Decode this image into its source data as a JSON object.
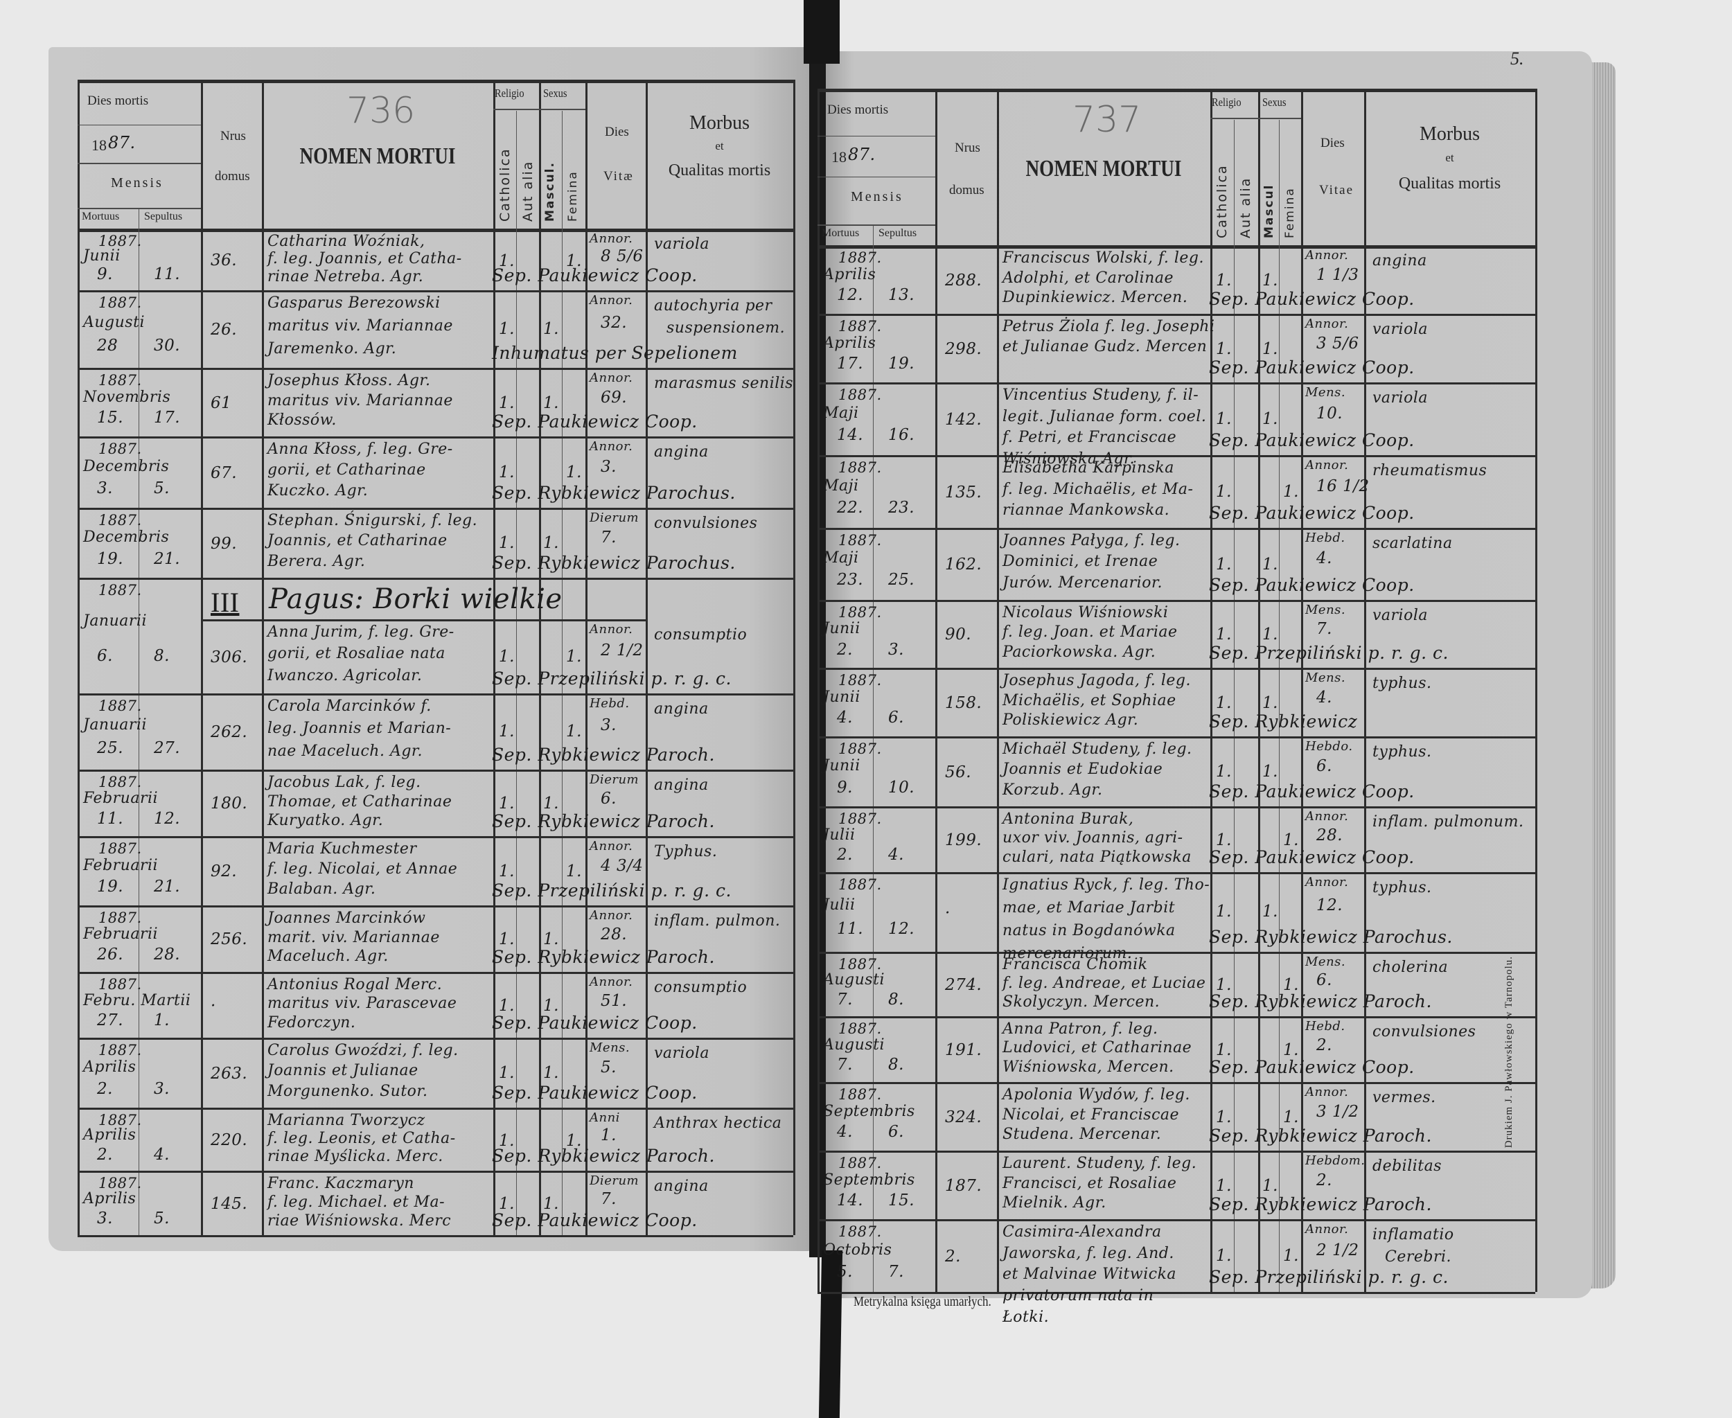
{
  "book_footer": "Metrykalna księga umarłych.",
  "page_number": "5.",
  "printer_imprint": "Drukiem J. Pawłowskiego w Tarnopolu.",
  "colors": {
    "paper": "#c6c6c6",
    "ink": "#1c1c1c",
    "rule": "#2c2c2c",
    "background": "#e9e9e9",
    "ribbon": "#151515"
  },
  "header": {
    "dies_mortis": "Dies mortis",
    "year_printed": "18",
    "year_hand": "87.",
    "mensis": "Mensis",
    "mortuus": "Mortuus",
    "sepultus": "Sepultus",
    "nrus": "Nrus",
    "domus": "domus",
    "nomen_mortui": "NOMEN MORTUI",
    "religio": "Religio",
    "sexus": "Sexus",
    "catholica": "Catholica",
    "aut_alia": "Aut alia",
    "mascul_left": "Mascul.",
    "mascul_right": "Mascul",
    "femina": "Femina",
    "dies": "Dies",
    "vitae_left": "Vitæ",
    "vitae_right": "Vitae",
    "morbus": "Morbus",
    "et": "et",
    "qualitas_mortis": "Qualitas mortis"
  },
  "left_page": {
    "folio_pencil": "736",
    "section": {
      "number": "III",
      "label": "Pagus: Borki wielkie"
    },
    "entries": [
      {
        "year": "1887.",
        "month": "Junii",
        "mortuus": "9.",
        "sepultus": "11.",
        "domus": "36.",
        "name_lines": [
          "Catharina Woźniak,",
          "f. leg. Joannis, et Catha-",
          "rinae Netreba. Agr."
        ],
        "catholica": "1.",
        "aut_alia": "",
        "mascul": "",
        "femina": "1.",
        "vitae_unit": "Annor.",
        "vitae_value": "8 5/6",
        "morbus_lines": [
          "variola"
        ],
        "sepultura": "Sep. Paukiewicz Coop."
      },
      {
        "year": "1887.",
        "month": "Augusti",
        "mortuus": "28",
        "sepultus": "30.",
        "domus": "26.",
        "name_lines": [
          "Gasparus Berezowski",
          "maritus viv. Mariannae",
          "Jaremenko. Agr."
        ],
        "catholica": "1.",
        "aut_alia": "",
        "mascul": "1.",
        "femina": "",
        "vitae_unit": "Annor.",
        "vitae_value": "32.",
        "morbus_lines": [
          "autochyria per",
          "suspensionem."
        ],
        "sepultura": "Inhumatus per Sepelionem"
      },
      {
        "year": "1887.",
        "month": "Novembris",
        "mortuus": "15.",
        "sepultus": "17.",
        "domus": "61",
        "name_lines": [
          "Josephus Kłoss. Agr.",
          "maritus viv. Mariannae",
          "Kłossów."
        ],
        "catholica": "1.",
        "aut_alia": "",
        "mascul": "1.",
        "femina": "",
        "vitae_unit": "Annor.",
        "vitae_value": "69.",
        "morbus_lines": [
          "marasmus senilis"
        ],
        "sepultura": "Sep. Paukiewicz Coop."
      },
      {
        "year": "1887.",
        "month": "Decembris",
        "mortuus": "3.",
        "sepultus": "5.",
        "domus": "67.",
        "name_lines": [
          "Anna Kłoss, f. leg. Gre-",
          "gorii, et Catharinae",
          "Kuczko. Agr."
        ],
        "catholica": "1.",
        "aut_alia": "",
        "mascul": "",
        "femina": "1.",
        "vitae_unit": "Annor.",
        "vitae_value": "3.",
        "morbus_lines": [
          "angina"
        ],
        "sepultura": "Sep. Rybkiewicz Parochus."
      },
      {
        "year": "1887.",
        "month": "Decembris",
        "mortuus": "19.",
        "sepultus": "21.",
        "domus": "99.",
        "name_lines": [
          "Stephan. Śnigurski, f. leg.",
          "Joannis, et Catharinae",
          "Berera. Agr."
        ],
        "catholica": "1.",
        "aut_alia": "",
        "mascul": "1.",
        "femina": "",
        "vitae_unit": "Dierum",
        "vitae_value": "7.",
        "morbus_lines": [
          "convulsiones"
        ],
        "sepultura": "Sep. Rybkiewicz Parochus."
      },
      {
        "year": "1887.",
        "month": "Januarii",
        "mortuus": "6.",
        "sepultus": "8.",
        "domus": "306.",
        "name_lines": [
          "Anna Jurim, f. leg. Gre-",
          "gorii, et Rosaliae nata",
          "Iwanczo. Agricolar."
        ],
        "catholica": "1.",
        "aut_alia": "",
        "mascul": "",
        "femina": "1.",
        "vitae_unit": "Annor.",
        "vitae_value": "2 1/2",
        "morbus_lines": [
          "consumptio"
        ],
        "sepultura": "Sep. Przepiliński p. r. g. c."
      },
      {
        "year": "1887.",
        "month": "Januarii",
        "mortuus": "25.",
        "sepultus": "27.",
        "domus": "262.",
        "name_lines": [
          "Carola Marcinków f.",
          "leg. Joannis et Marian-",
          "nae Maceluch. Agr."
        ],
        "catholica": "1.",
        "aut_alia": "",
        "mascul": "",
        "femina": "1.",
        "vitae_unit": "Hebd.",
        "vitae_value": "3.",
        "morbus_lines": [
          "angina"
        ],
        "sepultura": "Sep. Rybkiewicz Paroch."
      },
      {
        "year": "1887.",
        "month": "Februarii",
        "mortuus": "11.",
        "sepultus": "12.",
        "domus": "180.",
        "name_lines": [
          "Jacobus Lak, f. leg.",
          "Thomae, et Catharinae",
          "Kuryatko. Agr."
        ],
        "catholica": "1.",
        "aut_alia": "",
        "mascul": "1.",
        "femina": "",
        "vitae_unit": "Dierum",
        "vitae_value": "6.",
        "morbus_lines": [
          "angina"
        ],
        "sepultura": "Sep. Rybkiewicz Paroch."
      },
      {
        "year": "1887.",
        "month": "Februarii",
        "mortuus": "19.",
        "sepultus": "21.",
        "domus": "92.",
        "name_lines": [
          "Maria Kuchmester",
          "f. leg. Nicolai, et Annae",
          "Balaban. Agr."
        ],
        "catholica": "1.",
        "aut_alia": "",
        "mascul": "",
        "femina": "1.",
        "vitae_unit": "Annor.",
        "vitae_value": "4 3/4",
        "morbus_lines": [
          "Typhus."
        ],
        "sepultura": "Sep. Przepiliński p. r. g. c."
      },
      {
        "year": "1887.",
        "month": "Februarii",
        "mortuus": "26.",
        "sepultus": "28.",
        "domus": "256.",
        "name_lines": [
          "Joannes Marcinków",
          "marit. viv. Mariannae",
          "Maceluch. Agr."
        ],
        "catholica": "1.",
        "aut_alia": "",
        "mascul": "1.",
        "femina": "",
        "vitae_unit": "Annor.",
        "vitae_value": "28.",
        "morbus_lines": [
          "inflam. pulmon."
        ],
        "sepultura": "Sep. Rybkiewicz Paroch."
      },
      {
        "year": "1887.",
        "month": "Febru. Martii",
        "mortuus": "27.",
        "sepultus": "1.",
        "domus": "·",
        "name_lines": [
          "Antonius Rogal Merc.",
          "maritus viv. Parascevae",
          "Fedorczyn."
        ],
        "catholica": "1.",
        "aut_alia": "",
        "mascul": "1.",
        "femina": "",
        "vitae_unit": "Annor.",
        "vitae_value": "51.",
        "morbus_lines": [
          "consumptio"
        ],
        "sepultura": "Sep. Paukiewicz Coop."
      },
      {
        "year": "1887.",
        "month": "Aprilis",
        "mortuus": "2.",
        "sepultus": "3.",
        "domus": "263.",
        "name_lines": [
          "Carolus Gwoździ, f. leg.",
          "Joannis et Julianae",
          "Morgunenko. Sutor."
        ],
        "catholica": "1.",
        "aut_alia": "",
        "mascul": "1.",
        "femina": "",
        "vitae_unit": "Mens.",
        "vitae_value": "5.",
        "morbus_lines": [
          "variola"
        ],
        "sepultura": "Sep. Paukiewicz Coop."
      },
      {
        "year": "1887.",
        "month": "Aprilis",
        "mortuus": "2.",
        "sepultus": "4.",
        "domus": "220.",
        "name_lines": [
          "Marianna Tworzycz",
          "f. leg. Leonis, et Catha-",
          "rinae Myślicka. Merc."
        ],
        "catholica": "1.",
        "aut_alia": "",
        "mascul": "",
        "femina": "1.",
        "vitae_unit": "Anni",
        "vitae_value": "1.",
        "morbus_lines": [
          "Anthrax hectica"
        ],
        "sepultura": "Sep. Rybkiewicz Paroch."
      },
      {
        "year": "1887.",
        "month": "Aprilis",
        "mortuus": "3.",
        "sepultus": "5.",
        "domus": "145.",
        "name_lines": [
          "Franc. Kaczmaryn",
          "f. leg. Michael. et Ma-",
          "riae Wiśniowska. Merc"
        ],
        "catholica": "1.",
        "aut_alia": "",
        "mascul": "1.",
        "femina": "",
        "vitae_unit": "Dierum",
        "vitae_value": "7.",
        "morbus_lines": [
          "angina"
        ],
        "sepultura": "Sep. Paukiewicz Coop."
      }
    ]
  },
  "right_page": {
    "folio_pencil": "737",
    "entries": [
      {
        "year": "1887.",
        "month": "Aprilis",
        "mortuus": "12.",
        "sepultus": "13.",
        "domus": "288.",
        "name_lines": [
          "Franciscus Wolski, f. leg.",
          "Adolphi, et Carolinae",
          "Dupinkiewicz. Mercen."
        ],
        "catholica": "1.",
        "aut_alia": "",
        "mascul": "1.",
        "femina": "",
        "vitae_unit": "Annor.",
        "vitae_value": "1 1/3",
        "morbus_lines": [
          "angina"
        ],
        "sepultura": "Sep. Paukiewicz Coop."
      },
      {
        "year": "1887.",
        "month": "Aprilis",
        "mortuus": "17.",
        "sepultus": "19.",
        "domus": "298.",
        "name_lines": [
          "Petrus Żiola f. leg. Josephi",
          "et Julianae Gudz. Mercen"
        ],
        "catholica": "1.",
        "aut_alia": "",
        "mascul": "1.",
        "femina": "",
        "vitae_unit": "Annor.",
        "vitae_value": "3 5/6",
        "morbus_lines": [
          "variola"
        ],
        "sepultura": "Sep. Paukiewicz Coop."
      },
      {
        "year": "1887.",
        "month": "Maji",
        "mortuus": "14.",
        "sepultus": "16.",
        "domus": "142.",
        "name_lines": [
          "Vincentius Studeny, f. il-",
          "legit. Julianae form. coel.",
          "f. Petri, et Franciscae",
          "Wiśniowska Agr."
        ],
        "catholica": "1.",
        "aut_alia": "",
        "mascul": "1.",
        "femina": "",
        "vitae_unit": "Mens.",
        "vitae_value": "10.",
        "morbus_lines": [
          "variola"
        ],
        "sepultura": "Sep. Paukiewicz Coop."
      },
      {
        "year": "1887.",
        "month": "Maji",
        "mortuus": "22.",
        "sepultus": "23.",
        "domus": "135.",
        "name_lines": [
          "Elisabetha Karpinska",
          "f. leg. Michaëlis, et Ma-",
          "riannae Mankowska."
        ],
        "catholica": "1.",
        "aut_alia": "",
        "mascul": "",
        "femina": "1.",
        "vitae_unit": "Annor.",
        "vitae_value": "16 1/2",
        "morbus_lines": [
          "rheumatismus"
        ],
        "sepultura": "Sep. Paukiewicz Coop."
      },
      {
        "year": "1887.",
        "month": "Maji",
        "mortuus": "23.",
        "sepultus": "25.",
        "domus": "162.",
        "name_lines": [
          "Joannes Pałyga, f. leg.",
          "Dominici, et Irenae",
          "Jurów. Mercenarior."
        ],
        "catholica": "1.",
        "aut_alia": "",
        "mascul": "1.",
        "femina": "",
        "vitae_unit": "Hebd.",
        "vitae_value": "4.",
        "morbus_lines": [
          "scarlatina"
        ],
        "sepultura": "Sep. Paukiewicz Coop."
      },
      {
        "year": "1887.",
        "month": "Junii",
        "mortuus": "2.",
        "sepultus": "3.",
        "domus": "90.",
        "name_lines": [
          "Nicolaus Wiśniowski",
          "f. leg. Joan. et Mariae",
          "Paciorkowska. Agr."
        ],
        "catholica": "1.",
        "aut_alia": "",
        "mascul": "1.",
        "femina": "",
        "vitae_unit": "Mens.",
        "vitae_value": "7.",
        "morbus_lines": [
          "variola"
        ],
        "sepultura": "Sep. Przepiliński p. r. g. c."
      },
      {
        "year": "1887.",
        "month": "Junii",
        "mortuus": "4.",
        "sepultus": "6.",
        "domus": "158.",
        "name_lines": [
          "Josephus Jagoda, f. leg.",
          "Michaëlis, et Sophiae",
          "Poliskiewicz Agr."
        ],
        "catholica": "1.",
        "aut_alia": "",
        "mascul": "1.",
        "femina": "",
        "vitae_unit": "Mens.",
        "vitae_value": "4.",
        "morbus_lines": [
          "typhus."
        ],
        "sepultura": "Sep. Rybkiewicz"
      },
      {
        "year": "1887.",
        "month": "Junii",
        "mortuus": "9.",
        "sepultus": "10.",
        "domus": "56.",
        "name_lines": [
          "Michaël Studeny, f. leg.",
          "Joannis et Eudokiae",
          "Korzub. Agr."
        ],
        "catholica": "1.",
        "aut_alia": "",
        "mascul": "1.",
        "femina": "",
        "vitae_unit": "Hebdo.",
        "vitae_value": "6.",
        "morbus_lines": [
          "typhus."
        ],
        "sepultura": "Sep. Paukiewicz Coop."
      },
      {
        "year": "1887.",
        "month": "Julii",
        "mortuus": "2.",
        "sepultus": "4.",
        "domus": "199.",
        "name_lines": [
          "Antonina Burak,",
          "uxor viv. Joannis, agri-",
          "culari, nata Piątkowska"
        ],
        "catholica": "1.",
        "aut_alia": "",
        "mascul": "",
        "femina": "1.",
        "vitae_unit": "Annor.",
        "vitae_value": "28.",
        "morbus_lines": [
          "inflam. pulmonum."
        ],
        "sepultura": "Sep. Paukiewicz Coop."
      },
      {
        "year": "1887.",
        "month": "Julii",
        "mortuus": "11.",
        "sepultus": "12.",
        "domus": "·",
        "name_lines": [
          "Ignatius Ryck, f. leg. Tho-",
          "mae, et Mariae Jarbit",
          "natus in Bogdanówka",
          "mercenariorum."
        ],
        "catholica": "1.",
        "aut_alia": "",
        "mascul": "1.",
        "femina": "",
        "vitae_unit": "Annor.",
        "vitae_value": "12.",
        "morbus_lines": [
          "typhus."
        ],
        "sepultura": "Sep. Rybkiewicz Parochus."
      },
      {
        "year": "1887.",
        "month": "Augusti",
        "mortuus": "7.",
        "sepultus": "8.",
        "domus": "274.",
        "name_lines": [
          "Francisca Chomik",
          "f. leg. Andreae, et Luciae",
          "Skolyczyn. Mercen."
        ],
        "catholica": "1.",
        "aut_alia": "",
        "mascul": "",
        "femina": "1.",
        "vitae_unit": "Mens.",
        "vitae_value": "6.",
        "morbus_lines": [
          "cholerina"
        ],
        "sepultura": "Sep. Rybkiewicz Paroch."
      },
      {
        "year": "1887.",
        "month": "Augusti",
        "mortuus": "7.",
        "sepultus": "8.",
        "domus": "191.",
        "name_lines": [
          "Anna Patron, f. leg.",
          "Ludovici, et Catharinae",
          "Wiśniowska, Mercen."
        ],
        "catholica": "1.",
        "aut_alia": "",
        "mascul": "",
        "femina": "1.",
        "vitae_unit": "Hebd.",
        "vitae_value": "2.",
        "morbus_lines": [
          "convulsiones"
        ],
        "sepultura": "Sep. Paukiewicz Coop."
      },
      {
        "year": "1887.",
        "month": "Septembris",
        "mortuus": "4.",
        "sepultus": "6.",
        "domus": "324.",
        "name_lines": [
          "Apolonia Wydów, f. leg.",
          "Nicolai, et Franciscae",
          "Studena. Mercenar."
        ],
        "catholica": "1.",
        "aut_alia": "",
        "mascul": "",
        "femina": "1.",
        "vitae_unit": "Annor.",
        "vitae_value": "3 1/2",
        "morbus_lines": [
          "vermes."
        ],
        "sepultura": "Sep. Rybkiewicz Paroch."
      },
      {
        "year": "1887.",
        "month": "Septembris",
        "mortuus": "14.",
        "sepultus": "15.",
        "domus": "187.",
        "name_lines": [
          "Laurent. Studeny, f. leg.",
          "Francisci, et Rosaliae",
          "Mielnik. Agr."
        ],
        "catholica": "1.",
        "aut_alia": "",
        "mascul": "1.",
        "femina": "",
        "vitae_unit": "Hebdom.",
        "vitae_value": "2.",
        "morbus_lines": [
          "debilitas"
        ],
        "sepultura": "Sep. Rybkiewicz Paroch."
      },
      {
        "year": "1887.",
        "month": "Octobris",
        "mortuus": "5.",
        "sepultus": "7.",
        "domus": "2.",
        "name_lines": [
          "Casimira-Alexandra",
          "Jaworska, f. leg. And.",
          "et Malvinae Witwicka",
          "privatorum nata in",
          "Łotki."
        ],
        "catholica": "1.",
        "aut_alia": "",
        "mascul": "",
        "femina": "1.",
        "vitae_unit": "Annor.",
        "vitae_value": "2 1/2",
        "morbus_lines": [
          "inflamatio",
          "Cerebri."
        ],
        "sepultura": "Sep. Przepiliński p. r. g. c."
      }
    ]
  }
}
